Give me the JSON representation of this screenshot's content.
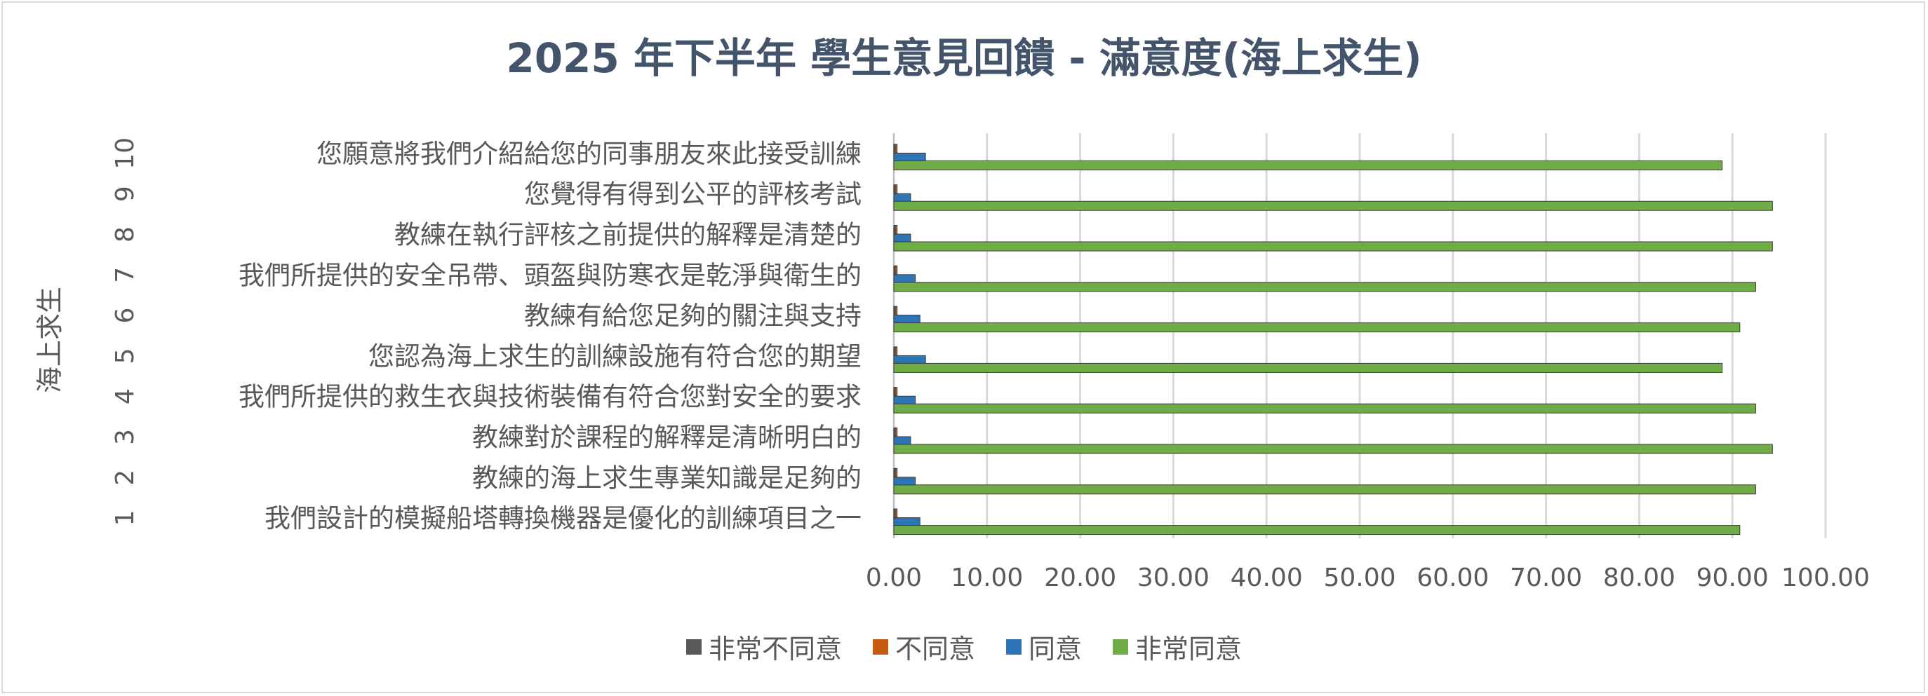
{
  "chart_data": {
    "type": "bar",
    "orientation": "horizontal",
    "title": "2025 年下半年 學生意見回饋 - 滿意度(海上求生)",
    "ylabel": "海上求生",
    "xlim": [
      0,
      100
    ],
    "x_ticks": [
      "0.00",
      "10.00",
      "20.00",
      "30.00",
      "40.00",
      "50.00",
      "60.00",
      "70.00",
      "80.00",
      "90.00",
      "100.00"
    ],
    "grid": "vertical",
    "legend_position": "bottom",
    "categories": [
      {
        "num": "1",
        "label": "我們設計的模擬船塔轉換機器是優化的訓練項目之一"
      },
      {
        "num": "2",
        "label": "教練的海上求生專業知識是足夠的"
      },
      {
        "num": "3",
        "label": "教練對於課程的解釋是清晰明白的"
      },
      {
        "num": "4",
        "label": "我們所提供的救生衣與技術裝備有符合您對安全的要求"
      },
      {
        "num": "5",
        "label": "您認為海上求生的訓練設施有符合您的期望"
      },
      {
        "num": "6",
        "label": "教練有給您足夠的關注與支持"
      },
      {
        "num": "7",
        "label": "我們所提供的安全吊帶、頭盔與防寒衣是乾淨與衛生的"
      },
      {
        "num": "8",
        "label": "教練在執行評核之前提供的解釋是清楚的"
      },
      {
        "num": "9",
        "label": "您覺得有得到公平的評核考試"
      },
      {
        "num": "10",
        "label": "您願意將我們介紹給您的同事朋友來此接受訓練"
      }
    ],
    "series": [
      {
        "name": "非常不同意",
        "color": "#595959",
        "values": [
          0.2,
          0.2,
          0.2,
          0.2,
          0.2,
          0.2,
          0.2,
          0.2,
          0.2,
          0.2
        ]
      },
      {
        "name": "不同意",
        "color": "#c55a11",
        "values": [
          0.2,
          0.2,
          0.2,
          0.2,
          0.2,
          0.2,
          0.2,
          0.2,
          0.2,
          0.2
        ]
      },
      {
        "name": "同意",
        "color": "#2e75b6",
        "values": [
          2.8,
          2.3,
          1.8,
          2.3,
          3.4,
          2.8,
          2.3,
          1.8,
          1.8,
          3.4
        ]
      },
      {
        "name": "非常同意",
        "color": "#70ad47",
        "values": [
          90.8,
          92.5,
          94.3,
          92.5,
          88.9,
          90.8,
          92.5,
          94.3,
          94.3,
          88.9
        ]
      }
    ]
  }
}
